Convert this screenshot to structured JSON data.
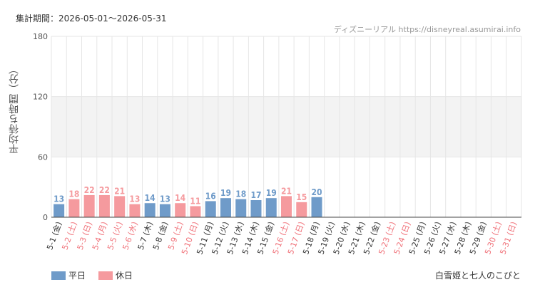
{
  "header": {
    "period": "集計期間：2026-05-01～2026-05-31",
    "credit": "ディズニーリアル https://disneyreal.asumirai.info"
  },
  "footer": {
    "attraction": "白雪姫と七人のこびと"
  },
  "colors": {
    "weekday": "#6f9bc9",
    "holiday": "#f59a9e",
    "band": "#f3f3f3",
    "grid": "#e6e6e6",
    "axis": "#444444"
  },
  "chart_data": {
    "type": "bar",
    "ylabel": "平均待ち時間（分）",
    "ylim": [
      0,
      180
    ],
    "yticks": [
      0,
      60,
      120,
      180
    ],
    "grid": true,
    "shaded_band": [
      60,
      120
    ],
    "legend_position": "bottom-left",
    "legend": [
      {
        "key": "weekday",
        "label": "平日"
      },
      {
        "key": "holiday",
        "label": "休日"
      }
    ],
    "categories": [
      "5-1 (金)",
      "5-2 (土)",
      "5-3 (日)",
      "5-4 (月)",
      "5-5 (火)",
      "5-6 (水)",
      "5-7 (木)",
      "5-8 (金)",
      "5-9 (土)",
      "5-10 (日)",
      "5-11 (月)",
      "5-12 (火)",
      "5-13 (水)",
      "5-14 (木)",
      "5-15 (金)",
      "5-16 (土)",
      "5-17 (日)",
      "5-18 (月)",
      "5-19 (火)",
      "5-20 (水)",
      "5-21 (木)",
      "5-22 (金)",
      "5-23 (土)",
      "5-24 (日)",
      "5-25 (月)",
      "5-26 (火)",
      "5-27 (水)",
      "5-28 (木)",
      "5-29 (金)",
      "5-30 (土)",
      "5-31 (日)"
    ],
    "day_type": [
      "weekday",
      "holiday",
      "holiday",
      "holiday",
      "holiday",
      "holiday",
      "weekday",
      "weekday",
      "holiday",
      "holiday",
      "weekday",
      "weekday",
      "weekday",
      "weekday",
      "weekday",
      "holiday",
      "holiday",
      "weekday",
      "weekday",
      "weekday",
      "weekday",
      "weekday",
      "holiday",
      "holiday",
      "weekday",
      "weekday",
      "weekday",
      "weekday",
      "weekday",
      "holiday",
      "holiday"
    ],
    "values": [
      13,
      18,
      22,
      22,
      21,
      13,
      14,
      13,
      14,
      11,
      16,
      19,
      18,
      17,
      19,
      21,
      15,
      20,
      null,
      null,
      null,
      null,
      null,
      null,
      null,
      null,
      null,
      null,
      null,
      null,
      null
    ]
  }
}
